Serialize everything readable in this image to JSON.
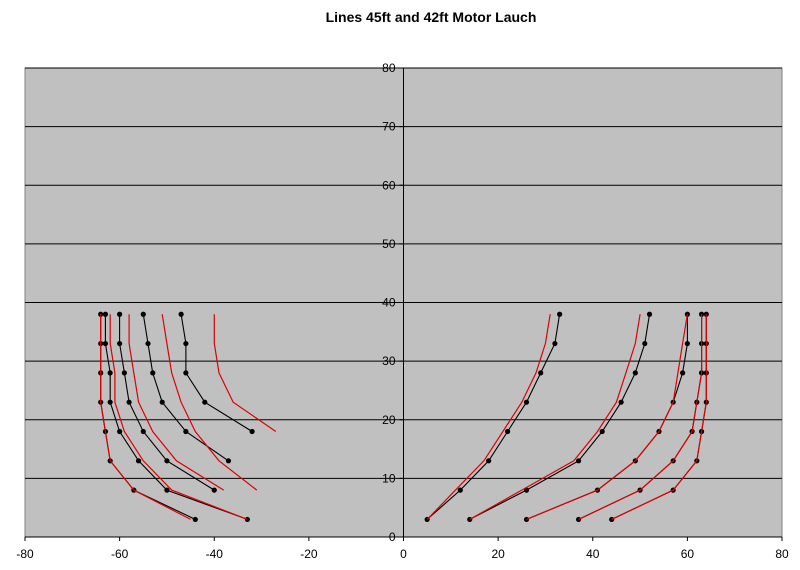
{
  "chart_data": {
    "type": "line",
    "title": "Lines 45ft and 42ft Motor Lauch",
    "xlabel": "",
    "ylabel": "",
    "xlim": [
      -80,
      80
    ],
    "ylim": [
      0,
      80
    ],
    "x_ticks": [
      -80,
      -60,
      -40,
      -20,
      0,
      20,
      40,
      60,
      80
    ],
    "y_ticks": [
      0,
      10,
      20,
      30,
      40,
      50,
      60,
      70,
      80
    ],
    "plot_background": "#c0c0c0",
    "grid": "horizontal",
    "legend": "none",
    "colors": {
      "series_a": "#000000",
      "series_b": "#e00000"
    },
    "series": [
      {
        "color": "#000000",
        "markers": true,
        "points": [
          [
            -64,
            38
          ],
          [
            -64,
            33
          ],
          [
            -64,
            28
          ],
          [
            -64,
            23
          ],
          [
            -63,
            18
          ],
          [
            -62,
            13
          ],
          [
            -57,
            8
          ],
          [
            -44,
            3
          ]
        ]
      },
      {
        "color": "#000000",
        "markers": true,
        "points": [
          [
            -63,
            38
          ],
          [
            -63,
            33
          ],
          [
            -62,
            28
          ],
          [
            -62,
            23
          ],
          [
            -60,
            18
          ],
          [
            -56,
            13
          ],
          [
            -50,
            8
          ],
          [
            -33,
            3
          ]
        ]
      },
      {
        "color": "#000000",
        "markers": true,
        "points": [
          [
            -60,
            38
          ],
          [
            -60,
            33
          ],
          [
            -59,
            28
          ],
          [
            -58,
            23
          ],
          [
            -55,
            18
          ],
          [
            -50,
            13
          ],
          [
            -40,
            8
          ]
        ]
      },
      {
        "color": "#000000",
        "markers": true,
        "points": [
          [
            -55,
            38
          ],
          [
            -54,
            33
          ],
          [
            -53,
            28
          ],
          [
            -51,
            23
          ],
          [
            -46,
            18
          ],
          [
            -37,
            13
          ]
        ]
      },
      {
        "color": "#000000",
        "markers": true,
        "points": [
          [
            -47,
            38
          ],
          [
            -46,
            33
          ],
          [
            -46,
            28
          ],
          [
            -42,
            23
          ],
          [
            -32,
            18
          ]
        ]
      },
      {
        "color": "#000000",
        "markers": true,
        "points": [
          [
            5,
            3
          ],
          [
            12,
            8
          ],
          [
            18,
            13
          ],
          [
            22,
            18
          ],
          [
            26,
            23
          ],
          [
            29,
            28
          ],
          [
            32,
            33
          ],
          [
            33,
            38
          ]
        ]
      },
      {
        "color": "#000000",
        "markers": true,
        "points": [
          [
            14,
            3
          ],
          [
            26,
            8
          ],
          [
            37,
            13
          ],
          [
            42,
            18
          ],
          [
            46,
            23
          ],
          [
            49,
            28
          ],
          [
            51,
            33
          ],
          [
            52,
            38
          ]
        ]
      },
      {
        "color": "#000000",
        "markers": true,
        "points": [
          [
            26,
            3
          ],
          [
            41,
            8
          ],
          [
            49,
            13
          ],
          [
            54,
            18
          ],
          [
            57,
            23
          ],
          [
            59,
            28
          ],
          [
            60,
            33
          ],
          [
            60,
            38
          ]
        ]
      },
      {
        "color": "#000000",
        "markers": true,
        "points": [
          [
            37,
            3
          ],
          [
            50,
            8
          ],
          [
            57,
            13
          ],
          [
            61,
            18
          ],
          [
            62,
            23
          ],
          [
            63,
            28
          ],
          [
            63,
            33
          ],
          [
            63,
            38
          ]
        ]
      },
      {
        "color": "#000000",
        "markers": true,
        "points": [
          [
            44,
            3
          ],
          [
            57,
            8
          ],
          [
            62,
            13
          ],
          [
            63,
            18
          ],
          [
            64,
            23
          ],
          [
            64,
            28
          ],
          [
            64,
            33
          ],
          [
            64,
            38
          ]
        ]
      },
      {
        "color": "#e00000",
        "markers": false,
        "points": [
          [
            -64,
            38
          ],
          [
            -64,
            33
          ],
          [
            -64,
            28
          ],
          [
            -64,
            23
          ],
          [
            -63,
            18
          ],
          [
            -62,
            13
          ],
          [
            -57,
            8
          ],
          [
            -45,
            3
          ]
        ]
      },
      {
        "color": "#e00000",
        "markers": false,
        "points": [
          [
            -62,
            38
          ],
          [
            -62,
            33
          ],
          [
            -61,
            28
          ],
          [
            -61,
            23
          ],
          [
            -59,
            18
          ],
          [
            -55,
            13
          ],
          [
            -49,
            8
          ],
          [
            -33,
            3
          ]
        ]
      },
      {
        "color": "#e00000",
        "markers": false,
        "points": [
          [
            -58,
            38
          ],
          [
            -58,
            33
          ],
          [
            -57,
            28
          ],
          [
            -56,
            23
          ],
          [
            -53,
            18
          ],
          [
            -48,
            13
          ],
          [
            -38,
            8
          ]
        ]
      },
      {
        "color": "#e00000",
        "markers": false,
        "points": [
          [
            -51,
            38
          ],
          [
            -50,
            33
          ],
          [
            -49,
            28
          ],
          [
            -47,
            23
          ],
          [
            -44,
            18
          ],
          [
            -39,
            13
          ],
          [
            -31,
            8
          ]
        ]
      },
      {
        "color": "#e00000",
        "markers": false,
        "points": [
          [
            -40,
            38
          ],
          [
            -40,
            33
          ],
          [
            -39,
            28
          ],
          [
            -36,
            23
          ],
          [
            -27,
            18
          ]
        ]
      },
      {
        "color": "#e00000",
        "markers": false,
        "points": [
          [
            5,
            3
          ],
          [
            11,
            8
          ],
          [
            17,
            13
          ],
          [
            21,
            18
          ],
          [
            25,
            23
          ],
          [
            28,
            28
          ],
          [
            30,
            33
          ],
          [
            31,
            38
          ]
        ]
      },
      {
        "color": "#e00000",
        "markers": false,
        "points": [
          [
            14,
            3
          ],
          [
            25,
            8
          ],
          [
            36,
            13
          ],
          [
            41,
            18
          ],
          [
            45,
            23
          ],
          [
            47,
            28
          ],
          [
            49,
            33
          ],
          [
            50,
            38
          ]
        ]
      },
      {
        "color": "#e00000",
        "markers": false,
        "points": [
          [
            26,
            3
          ],
          [
            41,
            8
          ],
          [
            49,
            13
          ],
          [
            54,
            18
          ],
          [
            57,
            23
          ],
          [
            58,
            28
          ],
          [
            59,
            33
          ],
          [
            60,
            38
          ]
        ]
      },
      {
        "color": "#e00000",
        "markers": false,
        "points": [
          [
            37,
            3
          ],
          [
            50,
            8
          ],
          [
            57,
            13
          ],
          [
            61,
            18
          ],
          [
            62,
            23
          ],
          [
            63,
            28
          ],
          [
            63,
            33
          ],
          [
            63,
            38
          ]
        ]
      },
      {
        "color": "#e00000",
        "markers": false,
        "points": [
          [
            44,
            3
          ],
          [
            57,
            8
          ],
          [
            62,
            13
          ],
          [
            63,
            18
          ],
          [
            64,
            23
          ],
          [
            64,
            28
          ],
          [
            64,
            33
          ],
          [
            64,
            38
          ]
        ]
      }
    ]
  }
}
